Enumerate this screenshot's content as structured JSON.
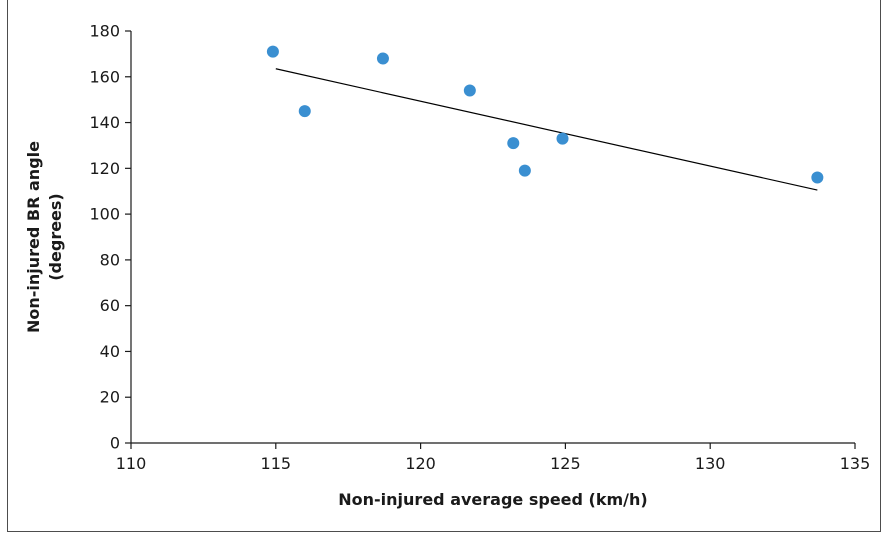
{
  "chart_data": {
    "type": "scatter",
    "title": "",
    "xlabel": "Non-injured average speed (km/h)",
    "ylabel_lines": [
      "Non-injured BR angle",
      "(degrees)"
    ],
    "xlim": [
      110,
      135
    ],
    "ylim": [
      0,
      180
    ],
    "xticks": [
      110,
      115,
      120,
      125,
      130,
      135
    ],
    "yticks": [
      0,
      20,
      40,
      60,
      80,
      100,
      120,
      140,
      160,
      180
    ],
    "points": [
      {
        "x": 114.9,
        "y": 171
      },
      {
        "x": 116.0,
        "y": 145
      },
      {
        "x": 118.7,
        "y": 168
      },
      {
        "x": 121.7,
        "y": 154
      },
      {
        "x": 123.2,
        "y": 131
      },
      {
        "x": 123.6,
        "y": 119
      },
      {
        "x": 124.9,
        "y": 133
      },
      {
        "x": 133.7,
        "y": 116
      }
    ],
    "trendline": {
      "x": [
        115.0,
        133.7
      ],
      "y": [
        163.5,
        110.5
      ]
    },
    "grid": false,
    "legend": "none",
    "colors": {
      "point": "#3a8fd1",
      "trendline": "#000000",
      "axis": "#1a1a1a"
    }
  }
}
